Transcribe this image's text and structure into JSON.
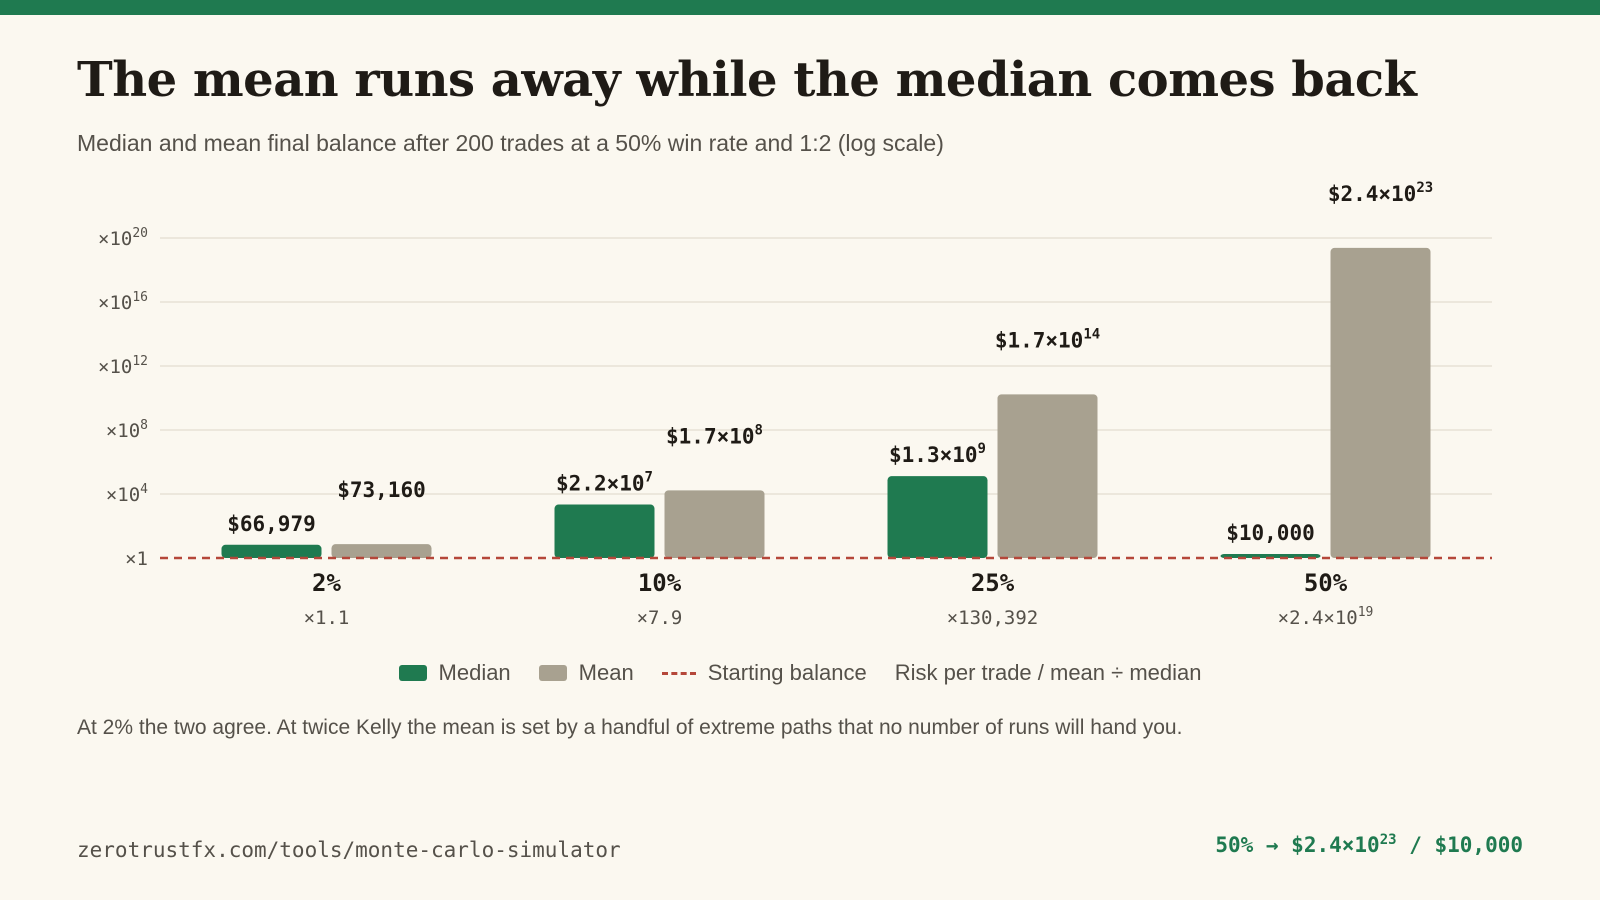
{
  "title": "The mean runs away while the median comes back",
  "subtitle": "Median and mean final balance after 200 trades at a 50% win rate and 1:2 (log scale)",
  "colors": {
    "accent": "#1f7a50",
    "median": "#1f7a50",
    "mean": "#a8a190",
    "baseline": "#b5473a"
  },
  "chart_data": {
    "type": "bar",
    "scale": "log",
    "ylim": [
      1,
      1e+20
    ],
    "y_ticks": [
      {
        "value": 1,
        "base": "×1",
        "exp": ""
      },
      {
        "value": 10000.0,
        "base": "×10",
        "exp": "4"
      },
      {
        "value": 100000000.0,
        "base": "×10",
        "exp": "8"
      },
      {
        "value": 1000000000000.0,
        "base": "×10",
        "exp": "12"
      },
      {
        "value": 1e+16,
        "base": "×10",
        "exp": "16"
      },
      {
        "value": 1e+20,
        "base": "×10",
        "exp": "20"
      }
    ],
    "grid": true,
    "baseline": 1,
    "categories": [
      "2%",
      "10%",
      "25%",
      "50%"
    ],
    "ratios": [
      {
        "base": "×1.1",
        "exp": ""
      },
      {
        "base": "×7.9",
        "exp": ""
      },
      {
        "base": "×130,392",
        "exp": ""
      },
      {
        "base": "×2.4×10",
        "exp": "19"
      }
    ],
    "series": [
      {
        "name": "Median",
        "multiples": [
          6.6979,
          2200,
          130000,
          1.0
        ],
        "labels": [
          {
            "base": "$66,979",
            "exp": ""
          },
          {
            "base": "$2.2×10",
            "exp": "7"
          },
          {
            "base": "$1.3×10",
            "exp": "9"
          },
          {
            "base": "$10,000",
            "exp": ""
          }
        ]
      },
      {
        "name": "Mean",
        "multiples": [
          7.316,
          17000,
          17000000000.0,
          2.4e+19
        ],
        "labels": [
          {
            "base": "$73,160",
            "exp": ""
          },
          {
            "base": "$1.7×10",
            "exp": "8"
          },
          {
            "base": "$1.7×10",
            "exp": "14"
          },
          {
            "base": "$2.4×10",
            "exp": "23"
          }
        ]
      }
    ]
  },
  "legend": {
    "median": "Median",
    "mean": "Mean",
    "baseline": "Starting balance",
    "axis_note": "Risk per trade / mean ÷ median"
  },
  "note": "At 2% the two agree. At twice Kelly the mean is set by a handful of extreme paths that no number of runs will hand you.",
  "footer": {
    "source": "zerotrustfx.com/tools/monte-carlo-simulator",
    "highlight_prefix": "50% → $2.4×10",
    "highlight_exp": "23",
    "highlight_suffix": " / $10,000"
  }
}
